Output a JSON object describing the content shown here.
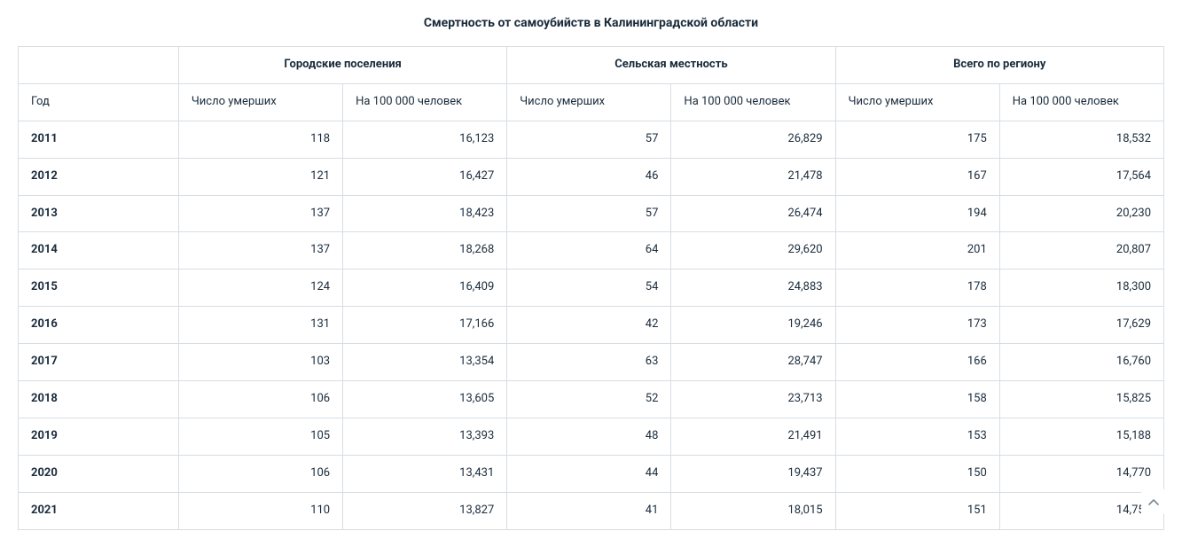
{
  "title": "Смертность от самоубийств в Калининградской области",
  "table": {
    "type": "table",
    "background_color": "#ffffff",
    "border_color": "#d8dde3",
    "text_color": "#1a2b3c",
    "header_fontweight": 700,
    "body_fontsize": 13,
    "groups_blank": "",
    "groups": [
      "Городские поселения",
      "Сельская местность",
      "Всего по региону"
    ],
    "sub_year": "Год",
    "sub_columns": [
      "Число умерших",
      "На 100 000 человек"
    ],
    "column_widths_pct": [
      14,
      14.33,
      14.33,
      14.33,
      14.33,
      14.33,
      14.33
    ],
    "rows": [
      {
        "year": "2011",
        "c": [
          "118",
          "16,123",
          "57",
          "26,829",
          "175",
          "18,532"
        ]
      },
      {
        "year": "2012",
        "c": [
          "121",
          "16,427",
          "46",
          "21,478",
          "167",
          "17,564"
        ]
      },
      {
        "year": "2013",
        "c": [
          "137",
          "18,423",
          "57",
          "26,474",
          "194",
          "20,230"
        ]
      },
      {
        "year": "2014",
        "c": [
          "137",
          "18,268",
          "64",
          "29,620",
          "201",
          "20,807"
        ]
      },
      {
        "year": "2015",
        "c": [
          "124",
          "16,409",
          "54",
          "24,883",
          "178",
          "18,300"
        ]
      },
      {
        "year": "2016",
        "c": [
          "131",
          "17,166",
          "42",
          "19,246",
          "173",
          "17,629"
        ]
      },
      {
        "year": "2017",
        "c": [
          "103",
          "13,354",
          "63",
          "28,747",
          "166",
          "16,760"
        ]
      },
      {
        "year": "2018",
        "c": [
          "106",
          "13,605",
          "52",
          "23,713",
          "158",
          "15,825"
        ]
      },
      {
        "year": "2019",
        "c": [
          "105",
          "13,393",
          "48",
          "21,491",
          "153",
          "15,188"
        ]
      },
      {
        "year": "2020",
        "c": [
          "106",
          "13,431",
          "44",
          "19,437",
          "150",
          "14,770"
        ]
      },
      {
        "year": "2021",
        "c": [
          "110",
          "13,827",
          "41",
          "18,015",
          "151",
          "14,758"
        ]
      }
    ]
  },
  "scroll_top_icon": "chevron-up"
}
